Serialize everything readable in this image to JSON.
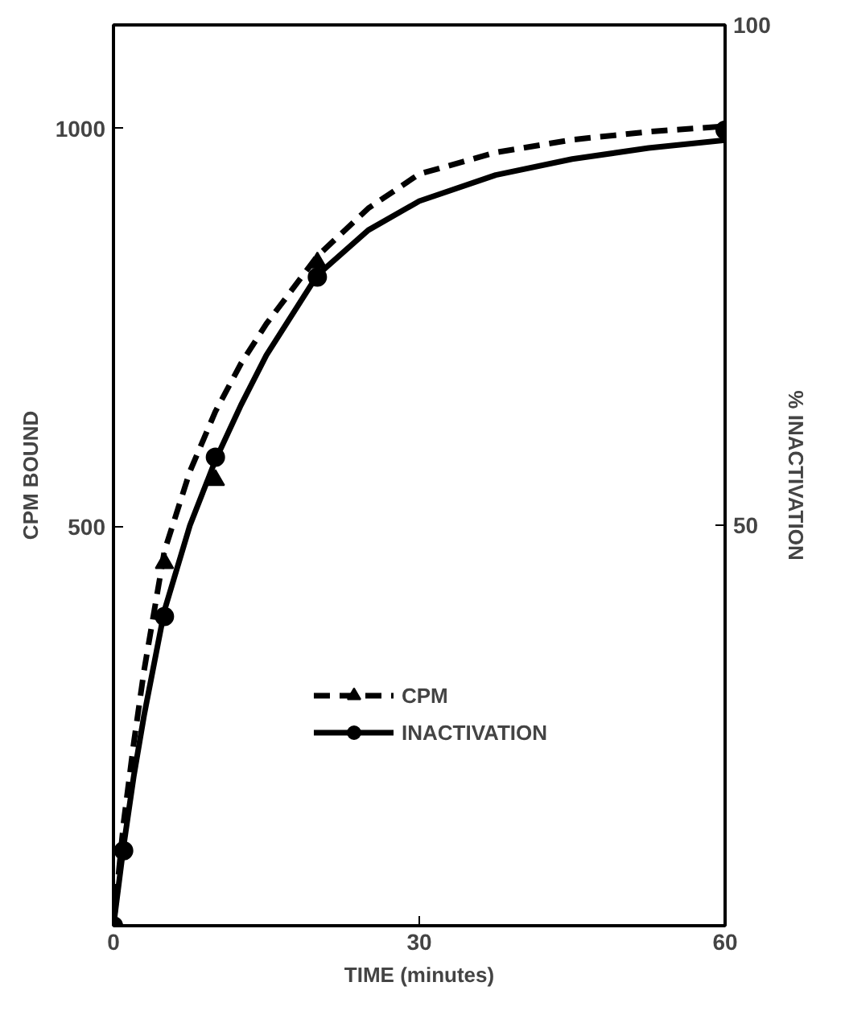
{
  "chart_data": {
    "type": "line",
    "xlabel": "TIME (minutes)",
    "ylabel": "CPM BOUND",
    "y2label": "% INACTIVATION",
    "xlim": [
      0,
      60
    ],
    "xticks": [
      0,
      30,
      60
    ],
    "ylim": [
      0,
      1130
    ],
    "yticks": [
      500,
      1000
    ],
    "y2lim": [
      10,
      100
    ],
    "y2ticks": [
      50,
      100
    ],
    "grid": false,
    "legend": "bottom right",
    "series": [
      {
        "line_style": "dashed",
        "color": "#000000",
        "x": [
          0,
          1,
          2,
          3,
          5,
          7.5,
          10,
          12.5,
          15,
          20,
          25,
          30,
          37.5,
          45,
          52.5,
          60
        ],
        "values": [
          0,
          130,
          230,
          320,
          470,
          570,
          645,
          705,
          755,
          840,
          900,
          943,
          970,
          986,
          996,
          1003
        ]
      },
      {
        "name": "CPM",
        "type": "scatter",
        "marker": "triangle",
        "color": "#000000",
        "x": [
          5,
          10,
          20
        ],
        "values": [
          455,
          559,
          832
        ]
      },
      {
        "axis": "y2",
        "line_style": "solid",
        "color": "#000000",
        "x": [
          0,
          1,
          2,
          3,
          5,
          7.5,
          10,
          12.5,
          15,
          20,
          25,
          30,
          37.5,
          45,
          52.5,
          60
        ],
        "values": [
          10,
          18,
          25,
          31,
          41.5,
          50,
          56.5,
          62,
          67,
          75,
          79.5,
          82.4,
          85,
          86.6,
          87.7,
          88.5
        ]
      },
      {
        "name": "INACTIVATION",
        "type": "scatter",
        "axis": "y2",
        "marker": "circle",
        "color": "#000000",
        "x": [
          0,
          1,
          5,
          10,
          20,
          60
        ],
        "values": [
          10,
          17.5,
          40.9,
          56.8,
          74.8,
          89.5
        ]
      }
    ]
  }
}
